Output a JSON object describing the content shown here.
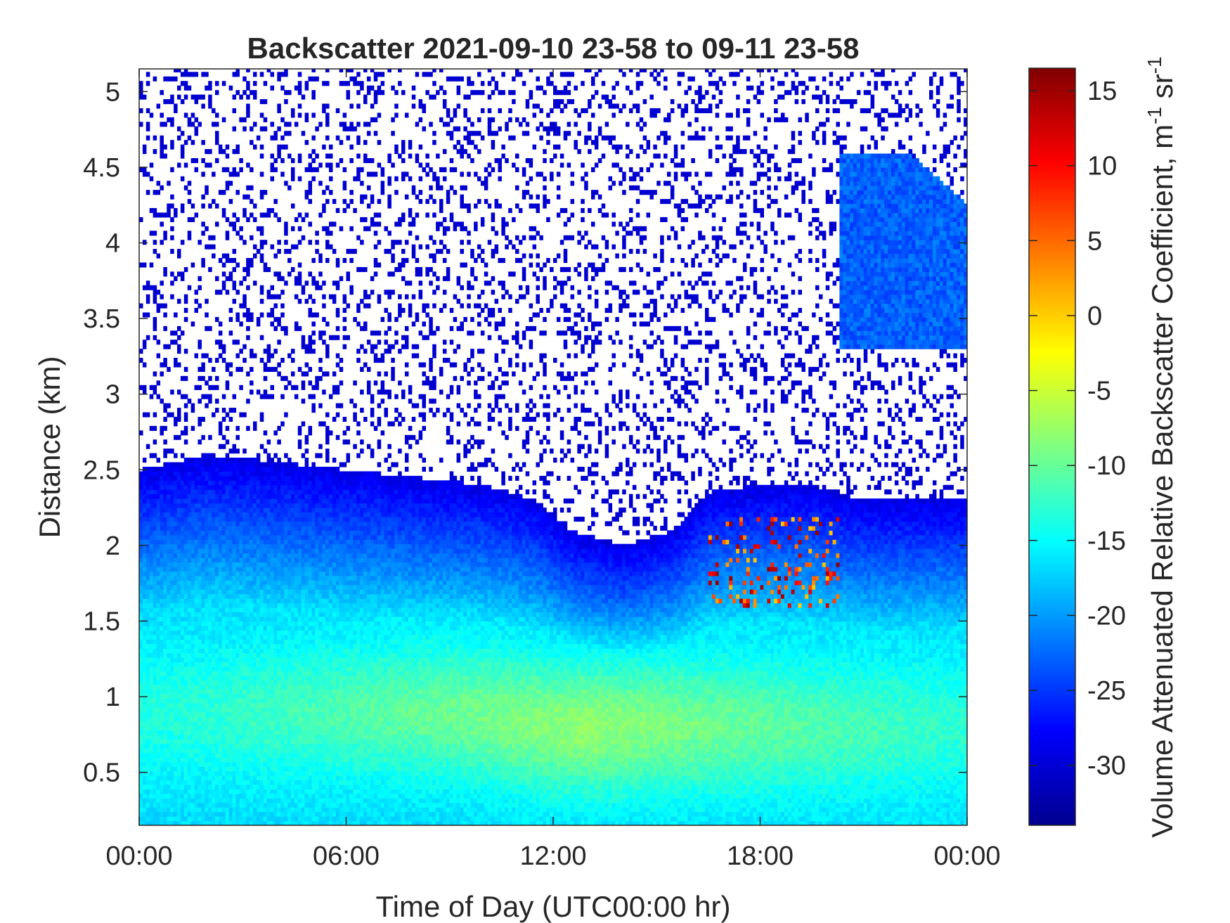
{
  "chart_data": {
    "type": "heatmap",
    "title": "Backscatter 2021-09-10 23-58 to 09-11 23-58",
    "xlabel": "Time of Day (UTC00:00 hr)",
    "ylabel": "Distance (km)",
    "colorbar_label": "Volume Attenuated Relative Backscatter Coefficient, m",
    "colorbar_label_sup1": "-1",
    "colorbar_label_mid": " sr",
    "colorbar_label_sup2": "-1",
    "x_ticks": [
      "00:00",
      "06:00",
      "12:00",
      "18:00",
      "00:00"
    ],
    "x_tick_hours": [
      0,
      6,
      12,
      18,
      24
    ],
    "xlim_hours": [
      0,
      24
    ],
    "y_ticks": [
      0.5,
      1,
      1.5,
      2,
      2.5,
      3,
      3.5,
      4,
      4.5,
      5
    ],
    "y_tick_labels": [
      "0.5",
      "1",
      "1.5",
      "2",
      "2.5",
      "3",
      "3.5",
      "4",
      "4.5",
      "5"
    ],
    "ylim_km": [
      0.15,
      5.15
    ],
    "colorbar_ticks": [
      -30,
      -25,
      -20,
      -15,
      -10,
      -5,
      0,
      5,
      10,
      15
    ],
    "colorbar_tick_labels": [
      "-30",
      "-25",
      "-20",
      "-15",
      "-10",
      "-5",
      "0",
      "5",
      "10",
      "15"
    ],
    "clim": [
      -34,
      16.5
    ],
    "colormap": "jet",
    "colors": {
      "axis": "#262626",
      "background": "#ffffff",
      "noise": "#0000c8"
    },
    "boundary_layer_top_km": {
      "hours": [
        0,
        2,
        4,
        6,
        8,
        10,
        11.5,
        12.5,
        14,
        15.5,
        16.5,
        18,
        19.5,
        21,
        22.5,
        24
      ],
      "km": [
        2.5,
        2.6,
        2.55,
        2.5,
        2.45,
        2.4,
        2.3,
        2.1,
        2.0,
        2.1,
        2.35,
        2.4,
        2.4,
        2.3,
        2.3,
        2.3
      ]
    },
    "mixed_layer_peak": {
      "hours": [
        9,
        12,
        15.5
      ],
      "km": [
        0.9,
        0.8,
        0.8
      ],
      "value": -8
    },
    "cloud_features": [
      {
        "name": "upper cloud",
        "hours": [
          20.3,
          24
        ],
        "km": [
          3.3,
          4.6
        ],
        "value": -23
      },
      {
        "name": "cloud base returns",
        "hours": [
          16.5,
          20.3
        ],
        "km": [
          1.6,
          2.2
        ],
        "value": 8
      }
    ]
  }
}
